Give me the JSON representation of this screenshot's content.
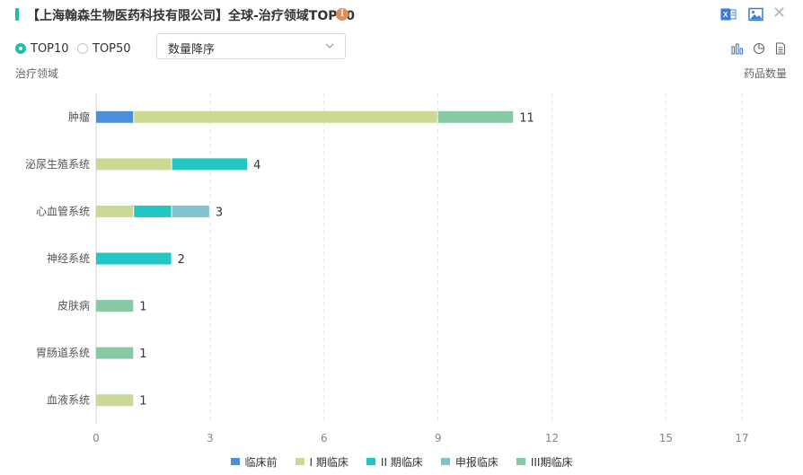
{
  "header": {
    "title": "【上海翰森生物医药科技有限公司】全球-治疗领域TOP10",
    "info_icon": "i"
  },
  "icons": {
    "excel": "excel-export-icon",
    "image": "image-export-icon",
    "close": "close-icon",
    "bar_view": "bar-chart-icon",
    "pie_view": "pie-chart-icon",
    "table_view": "document-icon"
  },
  "controls": {
    "radio_top10": "TOP10",
    "radio_top50": "TOP50",
    "selected": "TOP10",
    "sort_select": "数量降序"
  },
  "colors": {
    "accent": "#1fbfa6"
  },
  "chart_data": {
    "type": "bar",
    "orientation": "horizontal",
    "stacked": true,
    "ylabel": "治疗领域",
    "xlabel": "药品数量",
    "categories": [
      "肿瘤",
      "泌尿生殖系统",
      "心血管系统",
      "神经系统",
      "皮肤病",
      "胃肠道系统",
      "血液系统"
    ],
    "series": [
      {
        "name": "临床前",
        "color": "#4a90d9",
        "values": [
          1,
          0,
          0,
          0,
          0,
          0,
          0
        ]
      },
      {
        "name": "I 期临床",
        "color": "#cad994",
        "values": [
          8,
          2,
          1,
          0,
          0,
          0,
          1
        ]
      },
      {
        "name": "II 期临床",
        "color": "#22c6c4",
        "values": [
          0,
          2,
          1,
          2,
          0,
          0,
          0
        ]
      },
      {
        "name": "申报临床",
        "color": "#7fc2d0",
        "values": [
          0,
          0,
          1,
          0,
          0,
          0,
          0
        ]
      },
      {
        "name": "III期临床",
        "color": "#87c9a3",
        "values": [
          2,
          0,
          0,
          0,
          1,
          1,
          0
        ]
      }
    ],
    "totals": [
      11,
      4,
      3,
      2,
      1,
      1,
      1
    ],
    "xticks": [
      0,
      3,
      6,
      9,
      12,
      15,
      17
    ],
    "xlim": [
      0,
      17
    ],
    "grid": true,
    "legend_position": "bottom"
  }
}
